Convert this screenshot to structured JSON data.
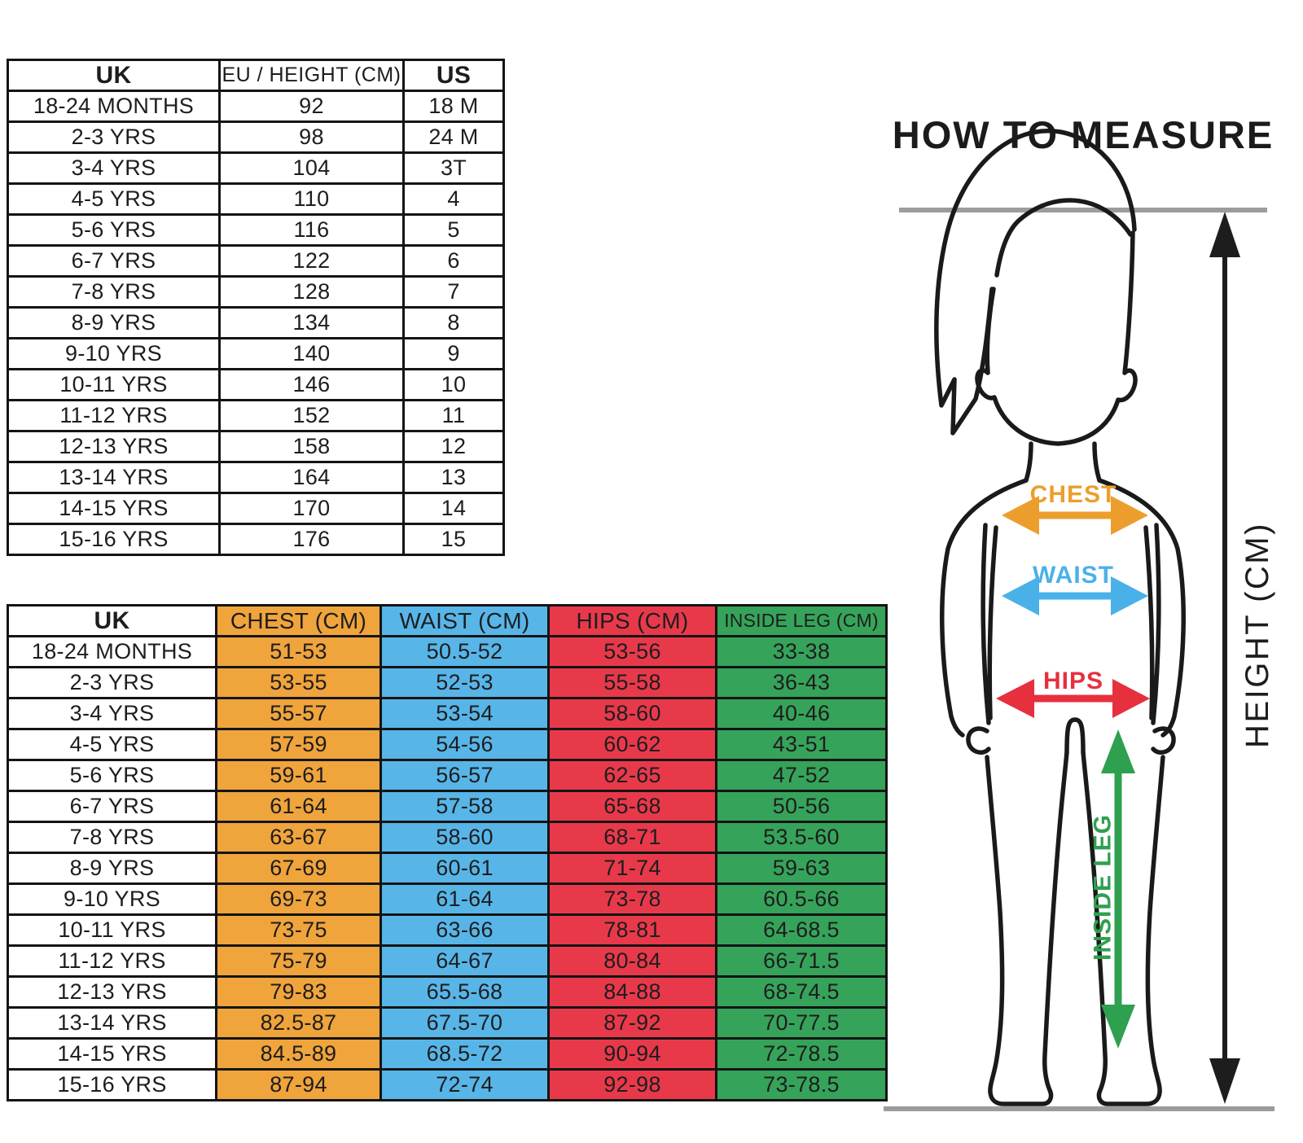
{
  "page": {
    "background": "#ffffff"
  },
  "size_conversion_table": {
    "headers": [
      "UK",
      "EU / HEIGHT (CM)",
      "US"
    ],
    "rows": [
      [
        "18-24 MONTHS",
        "92",
        "18 M"
      ],
      [
        "2-3 YRS",
        "98",
        "24 M"
      ],
      [
        "3-4 YRS",
        "104",
        "3T"
      ],
      [
        "4-5 YRS",
        "110",
        "4"
      ],
      [
        "5-6 YRS",
        "116",
        "5"
      ],
      [
        "6-7 YRS",
        "122",
        "6"
      ],
      [
        "7-8 YRS",
        "128",
        "7"
      ],
      [
        "8-9 YRS",
        "134",
        "8"
      ],
      [
        "9-10 YRS",
        "140",
        "9"
      ],
      [
        "10-11 YRS",
        "146",
        "10"
      ],
      [
        "11-12 YRS",
        "152",
        "11"
      ],
      [
        "12-13 YRS",
        "158",
        "12"
      ],
      [
        "13-14 YRS",
        "164",
        "13"
      ],
      [
        "14-15 YRS",
        "170",
        "14"
      ],
      [
        "15-16 YRS",
        "176",
        "15"
      ]
    ]
  },
  "body_measurement_table": {
    "headers": [
      "UK",
      "CHEST (CM)",
      "WAIST (CM)",
      "HIPS (CM)",
      "INSIDE LEG (CM)"
    ],
    "column_colors": [
      "#FFFFFF",
      "#F0A43C",
      "#58B5E8",
      "#E8394B",
      "#36A35A"
    ],
    "rows": [
      [
        "18-24 MONTHS",
        "51-53",
        "50.5-52",
        "53-56",
        "33-38"
      ],
      [
        "2-3 YRS",
        "53-55",
        "52-53",
        "55-58",
        "36-43"
      ],
      [
        "3-4 YRS",
        "55-57",
        "53-54",
        "58-60",
        "40-46"
      ],
      [
        "4-5 YRS",
        "57-59",
        "54-56",
        "60-62",
        "43-51"
      ],
      [
        "5-6 YRS",
        "59-61",
        "56-57",
        "62-65",
        "47-52"
      ],
      [
        "6-7 YRS",
        "61-64",
        "57-58",
        "65-68",
        "50-56"
      ],
      [
        "7-8 YRS",
        "63-67",
        "58-60",
        "68-71",
        "53.5-60"
      ],
      [
        "8-9 YRS",
        "67-69",
        "60-61",
        "71-74",
        "59-63"
      ],
      [
        "9-10 YRS",
        "69-73",
        "61-64",
        "73-78",
        "60.5-66"
      ],
      [
        "10-11 YRS",
        "73-75",
        "63-66",
        "78-81",
        "64-68.5"
      ],
      [
        "11-12 YRS",
        "75-79",
        "64-67",
        "80-84",
        "66-71.5"
      ],
      [
        "12-13 YRS",
        "79-83",
        "65.5-68",
        "84-88",
        "68-74.5"
      ],
      [
        "13-14 YRS",
        "82.5-87",
        "67.5-70",
        "87-92",
        "70-77.5"
      ],
      [
        "14-15 YRS",
        "84.5-89",
        "68.5-72",
        "90-94",
        "72-78.5"
      ],
      [
        "15-16 YRS",
        "87-94",
        "72-74",
        "92-98",
        "73-78.5"
      ]
    ]
  },
  "how_to_measure": {
    "title": "HOW TO MEASURE",
    "labels": {
      "chest": "CHEST",
      "waist": "WAIST",
      "hips": "HIPS",
      "inside_leg": "INSIDE LEG",
      "height": "HEIGHT (CM)"
    },
    "colors": {
      "chest": "#EC9E2D",
      "waist": "#4AB1E8",
      "hips": "#E6303E",
      "inside_leg": "#2EA04F",
      "height_arrow": "#1D1D1D",
      "guide_line": "#9C9C9C",
      "figure_outline": "#1A1A1A"
    }
  }
}
